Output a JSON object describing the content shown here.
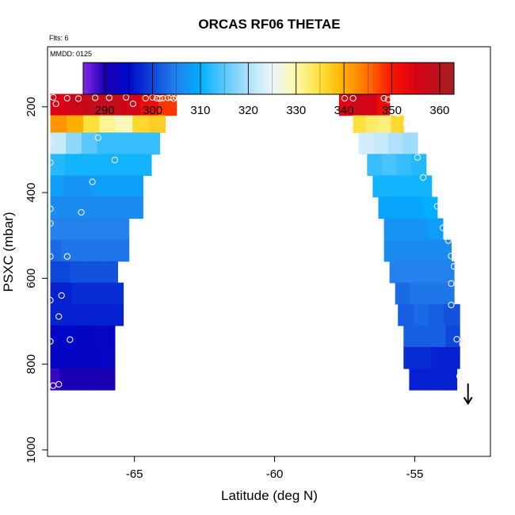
{
  "chart_data": {
    "type": "heatmap",
    "title": "ORCAS RF06 THETAE",
    "annotations": {
      "flights": "Flts: 6",
      "date": "MMDD: 0125"
    },
    "xlabel": "Latitude (deg N)",
    "ylabel": "PSXC (mbar)",
    "xlim": [
      -68.1,
      -52.3
    ],
    "ylim": [
      1015,
      60
    ],
    "y_reversed": true,
    "x_ticks": [
      "-65",
      "-60",
      "-55"
    ],
    "y_ticks": [
      "200",
      "400",
      "600",
      "800",
      "1000"
    ],
    "colorbar": {
      "range": [
        285.5,
        363
      ],
      "ticks": [
        "290",
        "300",
        "310",
        "320",
        "330",
        "340",
        "350",
        "360"
      ]
    },
    "rows": [
      {
        "p": 170,
        "p2": 220,
        "l": [
          -68,
          -67.4,
          -66.6,
          -65.9,
          -65.3,
          -64.7,
          -64
        ],
        "r": [
          -63.5,
          -57.7,
          -57.3,
          -55.9
        ],
        "vl": [
          355,
          357,
          358,
          358,
          356,
          352,
          348
        ],
        "vr": [
          354,
          357,
          356,
          352
        ]
      },
      {
        "p": 220,
        "p2": 260,
        "l": [
          -68,
          -67.6,
          -67,
          -66.4,
          -65.8,
          -65.2,
          -64.6
        ],
        "r": [
          -63.9,
          -57.2,
          -56.9,
          -55.4
        ],
        "vl": [
          342,
          340,
          335,
          331,
          329,
          336,
          337
        ],
        "vr": [
          335,
          333,
          332,
          336
        ]
      },
      {
        "p": 260,
        "p2": 310,
        "l": [
          -68,
          -67.5,
          -66.8,
          -66.1,
          -65.5,
          -64.9,
          -64.2
        ],
        "r": [
          -64.1,
          -57,
          -56.6,
          -54.9
        ],
        "vl": [
          322,
          318,
          315,
          313,
          313,
          313,
          313
        ],
        "vr": [
          323,
          322,
          320,
          319
        ]
      },
      {
        "p": 310,
        "p2": 360,
        "l": [
          -68,
          -67.4,
          -66.6,
          -65.8,
          -65.1,
          -64.4,
          -63.6
        ],
        "r": [
          -64.4,
          -56.7,
          -56.3,
          -54.6
        ],
        "vl": [
          312,
          311,
          311,
          311,
          311,
          311,
          311
        ],
        "vr": [
          313,
          314,
          313,
          312
        ]
      },
      {
        "p": 360,
        "p2": 410,
        "l": [
          -68,
          -67.3,
          -66.4,
          -65.6,
          -64.8,
          -64.1,
          -63.4
        ],
        "r": [
          -64.7,
          -56.5,
          -56,
          -54.4
        ],
        "vl": [
          308,
          307,
          307,
          308,
          308,
          308,
          308
        ],
        "vr": [
          311,
          311,
          311,
          311
        ]
      },
      {
        "p": 410,
        "p2": 460,
        "l": [
          -68,
          -67.3,
          -66.4,
          -65.6,
          -64.8,
          -64.1,
          -63.4
        ],
        "r": [
          -64.7,
          -56.3,
          -55.7,
          -54.2
        ],
        "vl": [
          306,
          306,
          306,
          306,
          306,
          306,
          306
        ],
        "vr": [
          309,
          309,
          309,
          310
        ]
      },
      {
        "p": 460,
        "p2": 510,
        "l": [
          -68,
          -67.4,
          -66.8,
          -66.2,
          -65.6,
          -65.1,
          -64.5
        ],
        "r": [
          -65.2,
          -56.1,
          -55.4,
          -54
        ],
        "vl": [
          305,
          305,
          305,
          305,
          305,
          305,
          305
        ],
        "vr": [
          307,
          307,
          307,
          308
        ]
      },
      {
        "p": 510,
        "p2": 560,
        "l": [
          -68,
          -67.4,
          -66.8,
          -66.2,
          -65.6,
          -65.1,
          -64.5
        ],
        "r": [
          -65.2,
          -56.1,
          -55.2,
          -53.7
        ],
        "vl": [
          303,
          304,
          304,
          304,
          304,
          304,
          304
        ],
        "vr": [
          306,
          306,
          306,
          306
        ]
      },
      {
        "p": 560,
        "p2": 610,
        "l": [
          -68,
          -67.6,
          -67.1,
          -66.6,
          -66.1,
          -65.7,
          -65.2
        ],
        "r": [
          -65.6,
          -55.9,
          -55.1,
          -53.6
        ],
        "vl": [
          300,
          300,
          301,
          301,
          301,
          301,
          301
        ],
        "vr": [
          305,
          305,
          305,
          305
        ]
      },
      {
        "p": 610,
        "p2": 660,
        "l": [
          -68,
          -67.6,
          -67.1,
          -66.6,
          -66.1,
          -65.7,
          -65.2
        ],
        "r": [
          -65.4,
          -55.7,
          -54.9,
          -53.6
        ],
        "vl": [
          297,
          297,
          298,
          298,
          298,
          298,
          298
        ],
        "vr": [
          303,
          304,
          304,
          304
        ]
      },
      {
        "p": 660,
        "p2": 710,
        "l": [
          -68,
          -67.6,
          -67.1,
          -66.6,
          -66.1,
          -65.7,
          -65.2
        ],
        "r": [
          -65.4,
          -55.6,
          -54.7,
          -53.4
        ],
        "vl": [
          297,
          297,
          297,
          297,
          297,
          297,
          297
        ],
        "vr": [
          302,
          303,
          302,
          301
        ]
      },
      {
        "p": 710,
        "p2": 760,
        "l": [
          -68,
          -67.6,
          -67.3,
          -66.9,
          -66.5,
          -66.1,
          -65.7
        ],
        "r": [
          -65.7,
          -55.4,
          -54.6,
          -53.4
        ],
        "vl": [
          294,
          295,
          295,
          294,
          294,
          293,
          294
        ],
        "vr": [
          302,
          302,
          302,
          300
        ]
      },
      {
        "p": 760,
        "p2": 810,
        "l": [
          -68,
          -67.6,
          -67.3,
          -66.9,
          -66.5,
          -66.1,
          -65.7
        ],
        "r": [
          -65.7,
          -55.4,
          -54.6,
          -53.4
        ],
        "vl": [
          294,
          294,
          294,
          294,
          294,
          294,
          293
        ],
        "vr": [
          298,
          298,
          297,
          297
        ]
      },
      {
        "p": 810,
        "p2": 860,
        "l": [
          -68,
          -67.6,
          -67.3,
          -66.9,
          -66.5,
          -66.1,
          -65.7
        ],
        "r": [
          -65.7,
          -55.2,
          -54.4,
          -53.5
        ],
        "vl": [
          289,
          290,
          290,
          290,
          290,
          290,
          290
        ],
        "vr": [
          297,
          297,
          297,
          297
        ]
      }
    ],
    "markers": [
      [
        -67.9,
        178
      ],
      [
        -67.8,
        193
      ],
      [
        -67.4,
        180
      ],
      [
        -67,
        181
      ],
      [
        -66.4,
        179
      ],
      [
        -65.9,
        179
      ],
      [
        -65.3,
        178
      ],
      [
        -65.05,
        193
      ],
      [
        -64.6,
        180
      ],
      [
        -64.35,
        178
      ],
      [
        -64.1,
        181
      ],
      [
        -63.8,
        179
      ],
      [
        -63.6,
        181
      ],
      [
        -63.5,
        178
      ],
      [
        -63.7,
        178
      ],
      [
        -64,
        180
      ],
      [
        -64.2,
        180
      ],
      [
        -63.4,
        179
      ],
      [
        -65.6,
        228
      ],
      [
        -66.3,
        272
      ],
      [
        -68,
        279
      ],
      [
        -68,
        330
      ],
      [
        -65.7,
        324
      ],
      [
        -66.5,
        375
      ],
      [
        -68,
        438
      ],
      [
        -66.9,
        446
      ],
      [
        -68,
        472
      ],
      [
        -67.4,
        549
      ],
      [
        -68,
        549
      ],
      [
        -67.6,
        640
      ],
      [
        -68,
        651
      ],
      [
        -67.7,
        689
      ],
      [
        -67.3,
        743
      ],
      [
        -68,
        747
      ],
      [
        -67.9,
        850
      ],
      [
        -67.7,
        847
      ],
      [
        -57.5,
        180
      ],
      [
        -57.2,
        180
      ],
      [
        -56.1,
        180
      ],
      [
        -55.95,
        183
      ],
      [
        -55.6,
        215
      ],
      [
        -55.3,
        240
      ],
      [
        -54.9,
        318
      ],
      [
        -54.7,
        365
      ],
      [
        -54.2,
        432
      ],
      [
        -54,
        482
      ],
      [
        -53.8,
        512
      ],
      [
        -53.7,
        548
      ],
      [
        -53.6,
        572
      ],
      [
        -53.7,
        612
      ],
      [
        -53.7,
        662
      ],
      [
        -53.5,
        742
      ],
      [
        -53.3,
        753
      ],
      [
        -53.4,
        828
      ]
    ],
    "arrow": {
      "x": -53.1,
      "from": 845,
      "to": 892
    }
  }
}
